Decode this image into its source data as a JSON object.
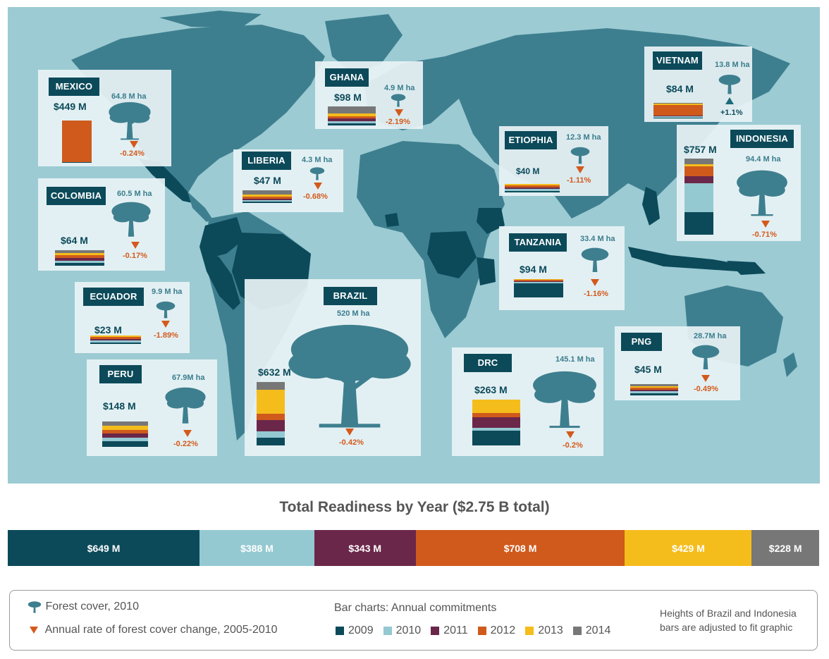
{
  "colors": {
    "2009": "#0c4a5a",
    "2010": "#95c9d2",
    "2011": "#6b2749",
    "2012": "#cf5a1c",
    "2013": "#f5bd1c",
    "2014": "#777777",
    "land": "#3e7f8f",
    "highlight": "#0c4a5a",
    "ocean": "#9ccbd3",
    "tree": "#3e7f8f"
  },
  "countries": [
    {
      "name": "MEXICO",
      "amount": "$449 M",
      "forest": "64.8 M ha",
      "change": "-0.24%",
      "direction": "down"
    },
    {
      "name": "GHANA",
      "amount": "$98 M",
      "forest": "4.9 M ha",
      "change": "-2.19%",
      "direction": "down"
    },
    {
      "name": "VIETNAM",
      "amount": "$84 M",
      "forest": "13.8 M ha",
      "change": "+1.1%",
      "direction": "up"
    },
    {
      "name": "ETIOPHIA",
      "amount": "$40 M",
      "forest": "12.3 M ha",
      "change": "-1.11%",
      "direction": "down"
    },
    {
      "name": "LIBERIA",
      "amount": "$47 M",
      "forest": "4.3 M ha",
      "change": "-0.68%",
      "direction": "down"
    },
    {
      "name": "INDONESIA",
      "amount": "$757 M",
      "forest": "94.4 M ha",
      "change": "-0.71%",
      "direction": "down"
    },
    {
      "name": "COLOMBIA",
      "amount": "$64 M",
      "forest": "60.5 M ha",
      "change": "-0.17%",
      "direction": "down"
    },
    {
      "name": "TANZANIA",
      "amount": "$94 M",
      "forest": "33.4 M ha",
      "change": "-1.16%",
      "direction": "down"
    },
    {
      "name": "ECUADOR",
      "amount": "$23 M",
      "forest": "9.9 M ha",
      "change": "-1.89%",
      "direction": "down"
    },
    {
      "name": "BRAZIL",
      "amount": "$632 M",
      "forest": "520 M ha",
      "change": "-0.42%",
      "direction": "down"
    },
    {
      "name": "PNG",
      "amount": "$45 M",
      "forest": "28.7M ha",
      "change": "-0.49%",
      "direction": "down"
    },
    {
      "name": "PERU",
      "amount": "$148 M",
      "forest": "67.9M ha",
      "change": "-0.22%",
      "direction": "down"
    },
    {
      "name": "DRC",
      "amount": "$263 M",
      "forest": "145.1 M ha",
      "change": "-0.2%",
      "direction": "down"
    }
  ],
  "chart_data": {
    "type": "bar",
    "title": "Total Readiness by Year ($2.75 B total)",
    "categories": [
      "2009",
      "2010",
      "2011",
      "2012",
      "2013",
      "2014"
    ],
    "values": [
      649,
      388,
      343,
      708,
      429,
      228
    ],
    "labels": [
      "$649 M",
      "$388 M",
      "$343 M",
      "$708 M",
      "$429 M",
      "$228 M"
    ]
  },
  "legend": {
    "forest_cover": "Forest cover, 2010",
    "annual_rate": "Annual rate of forest cover change, 2005-2010",
    "bar_charts": "Bar charts: Annual commitments",
    "years": [
      "2009",
      "2010",
      "2011",
      "2012",
      "2013",
      "2014"
    ],
    "note_line1": "Heights of Brazil and Indonesia",
    "note_line2": "bars are adjusted to fit graphic"
  }
}
